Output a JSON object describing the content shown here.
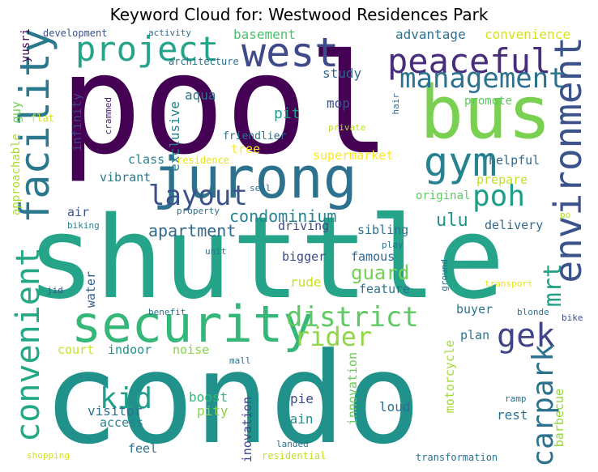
{
  "title": "Keyword Cloud for: Westwood Residences Park",
  "words": [
    {
      "text": "pool",
      "color": "#440154"
    },
    {
      "text": "shuttle",
      "color": "#25a489"
    },
    {
      "text": "condo",
      "color": "#21918c"
    },
    {
      "text": "bus",
      "color": "#7ad151"
    },
    {
      "text": "jurong",
      "color": "#2c728e"
    },
    {
      "text": "environment",
      "color": "#3b528b"
    },
    {
      "text": "security",
      "color": "#35b779"
    },
    {
      "text": "facility",
      "color": "#29788e"
    },
    {
      "text": "west",
      "color": "#3e4a89"
    },
    {
      "text": "peaceful",
      "color": "#472d7b"
    },
    {
      "text": "project",
      "color": "#25a489"
    },
    {
      "text": "management",
      "color": "#2c728e"
    },
    {
      "text": "convenient",
      "color": "#22a884"
    },
    {
      "text": "gym",
      "color": "#26828e"
    },
    {
      "text": "poh",
      "color": "#1f9e89"
    },
    {
      "text": "layout",
      "color": "#3b528b"
    },
    {
      "text": "district",
      "color": "#5ec962"
    },
    {
      "text": "rider",
      "color": "#8fd744"
    },
    {
      "text": "gek",
      "color": "#414487"
    },
    {
      "text": "kid",
      "color": "#1f9e89"
    },
    {
      "text": "carpark",
      "color": "#2c728e"
    },
    {
      "text": "mrt",
      "color": "#1fa187"
    },
    {
      "text": "condominium",
      "color": "#25858e"
    },
    {
      "text": "apartment",
      "color": "#31688e"
    },
    {
      "text": "ulu",
      "color": "#21918c"
    },
    {
      "text": "guard",
      "color": "#75d054"
    },
    {
      "text": "advantage",
      "color": "#2c728e"
    },
    {
      "text": "convenience",
      "color": "#d8e219"
    },
    {
      "text": "basement",
      "color": "#4ac16d"
    },
    {
      "text": "study",
      "color": "#31688e"
    },
    {
      "text": "yusri",
      "color": "#440154"
    },
    {
      "text": "development",
      "color": "#3b528b"
    },
    {
      "text": "activity",
      "color": "#2e6e8e"
    },
    {
      "text": "architecture",
      "color": "#2c728e"
    },
    {
      "text": "aqua",
      "color": "#2c728e"
    },
    {
      "text": "pit",
      "color": "#1f9e89"
    },
    {
      "text": "mop",
      "color": "#3b528b"
    },
    {
      "text": "promote",
      "color": "#5ec962"
    },
    {
      "text": "exclusive",
      "color": "#26828e"
    },
    {
      "text": "infinity",
      "color": "#414487"
    },
    {
      "text": "guy",
      "color": "#75d054"
    },
    {
      "text": "approachable",
      "color": "#addc30"
    },
    {
      "text": "flat",
      "color": "#d2e21b"
    },
    {
      "text": "crammed",
      "color": "#482576"
    },
    {
      "text": "private",
      "color": "#bddf26"
    },
    {
      "text": "hair",
      "color": "#31688e"
    },
    {
      "text": "class",
      "color": "#26828e"
    },
    {
      "text": "residence",
      "color": "#e5e419"
    },
    {
      "text": "tree",
      "color": "#fde725"
    },
    {
      "text": "friendlier",
      "color": "#2c728e"
    },
    {
      "text": "supermarket",
      "color": "#fde725"
    },
    {
      "text": "helpful",
      "color": "#31688e"
    },
    {
      "text": "vibrant",
      "color": "#2a788e"
    },
    {
      "text": "prepare",
      "color": "#c2df23"
    },
    {
      "text": "sell",
      "color": "#2c728e"
    },
    {
      "text": "air",
      "color": "#3b528b"
    },
    {
      "text": "original",
      "color": "#5ec962"
    },
    {
      "text": "property",
      "color": "#2c728e"
    },
    {
      "text": "driving",
      "color": "#3e4a89"
    },
    {
      "text": "delivery",
      "color": "#31688e"
    },
    {
      "text": "biking",
      "color": "#26828e"
    },
    {
      "text": "sibling",
      "color": "#2c728e"
    },
    {
      "text": "po",
      "color": "#b5de2b"
    },
    {
      "text": "play",
      "color": "#2c728e"
    },
    {
      "text": "unit",
      "color": "#2c728e"
    },
    {
      "text": "bigger",
      "color": "#3e4a89"
    },
    {
      "text": "famous",
      "color": "#31688e"
    },
    {
      "text": "water",
      "color": "#355f8d"
    },
    {
      "text": "rude",
      "color": "#cae11f"
    },
    {
      "text": "feature",
      "color": "#2c728e"
    },
    {
      "text": "ground",
      "color": "#2c728e"
    },
    {
      "text": "transport",
      "color": "#e5e419"
    },
    {
      "text": "jid",
      "color": "#3b528b"
    },
    {
      "text": "benefit",
      "color": "#2c728e"
    },
    {
      "text": "buyer",
      "color": "#2c728e"
    },
    {
      "text": "blonde",
      "color": "#2c728e"
    },
    {
      "text": "bike",
      "color": "#3b528b"
    },
    {
      "text": "plan",
      "color": "#2c728e"
    },
    {
      "text": "court",
      "color": "#cae11f"
    },
    {
      "text": "indoor",
      "color": "#21918c"
    },
    {
      "text": "noise",
      "color": "#86d549"
    },
    {
      "text": "mall",
      "color": "#2c728e"
    },
    {
      "text": "boost",
      "color": "#35b779"
    },
    {
      "text": "pity",
      "color": "#86d549"
    },
    {
      "text": "visitor",
      "color": "#2c728e"
    },
    {
      "text": "access",
      "color": "#26828e"
    },
    {
      "text": "pie",
      "color": "#3e4a89"
    },
    {
      "text": "rain",
      "color": "#21918c"
    },
    {
      "text": "loud",
      "color": "#2c728e"
    },
    {
      "text": "motorcycle",
      "color": "#a2da37"
    },
    {
      "text": "rest",
      "color": "#2c728e"
    },
    {
      "text": "innovation",
      "color": "#6ccd5a"
    },
    {
      "text": "inovation",
      "color": "#3e4a89"
    },
    {
      "text": "barbecue",
      "color": "#93d741"
    },
    {
      "text": "ramp",
      "color": "#2c728e"
    },
    {
      "text": "feel",
      "color": "#2c728e"
    },
    {
      "text": "landed",
      "color": "#2c728e"
    },
    {
      "text": "shopping",
      "color": "#d2e21b"
    },
    {
      "text": "residential",
      "color": "#c2df23"
    },
    {
      "text": "transformation",
      "color": "#2c728e"
    }
  ]
}
